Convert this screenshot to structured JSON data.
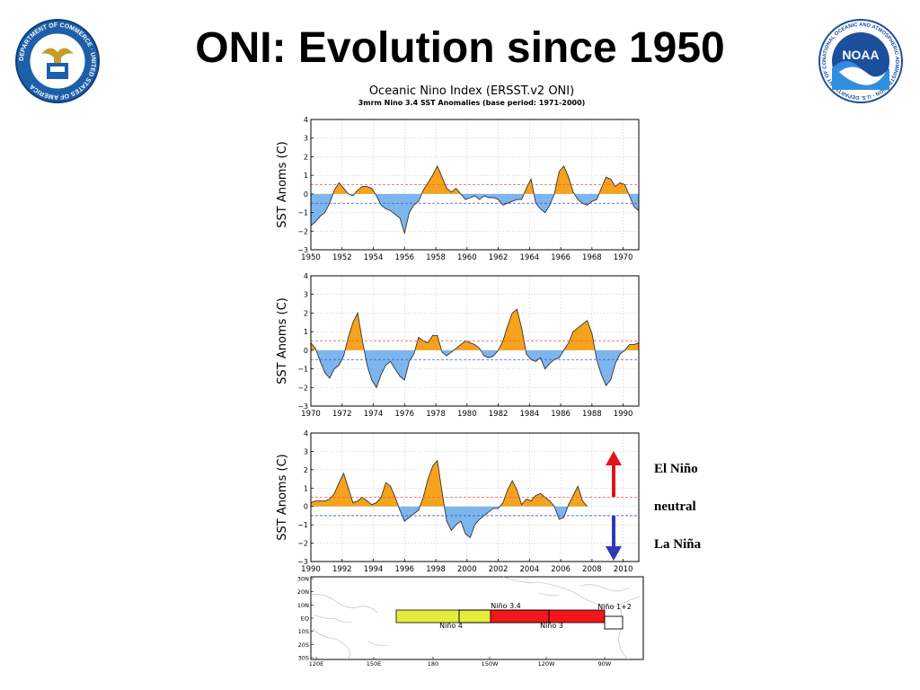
{
  "page": {
    "title": "ONI: Evolution since 1950",
    "logos": [
      {
        "name": "commerce-seal",
        "text": "DEPARTMENT OF COMMERCE · UNITED STATES OF AMERICA"
      },
      {
        "name": "noaa-logo",
        "text": "NOAA",
        "ring_text": "NATIONAL OCEANIC AND ATMOSPHERIC ADMINISTRATION · U.S. DEPARTMENT OF COMMERCE"
      }
    ]
  },
  "legend": {
    "el_nino": "El Niño",
    "neutral": "neutral",
    "la_nina": "La Niña"
  },
  "colors": {
    "warm": "#f5a31c",
    "cold": "#7db6ef",
    "pos_line": "#f05a5a",
    "neg_line": "#3a55c8",
    "up_arrow": "#e0151b",
    "down_arrow": "#2b3bb5",
    "nino34_west": "#e4ec3c",
    "nino3": "#f2171b"
  },
  "chart_data": [
    {
      "type": "area",
      "title": "Oceanic Nino Index (ERSST.v2 ONI)",
      "subtitle": "3mrm Nino 3.4 SST Anomalies (base period: 1971-2000)",
      "ylabel": "SST Anoms (C)",
      "ylim": [
        -3,
        4
      ],
      "yticks": [
        "4",
        "3",
        "2",
        "1",
        "0",
        "−1",
        "−2",
        "−3"
      ],
      "xlim": [
        1950,
        1971
      ],
      "xticks": [
        "1950",
        "1952",
        "1954",
        "1956",
        "1958",
        "1960",
        "1962",
        "1964",
        "1966",
        "1968",
        "1970"
      ],
      "thresholds": [
        0.5,
        -0.5
      ],
      "grid": true,
      "x": [
        1950.0,
        1950.3,
        1950.6,
        1950.9,
        1951.2,
        1951.5,
        1951.8,
        1952.1,
        1952.4,
        1952.7,
        1953.0,
        1953.3,
        1953.6,
        1953.9,
        1954.2,
        1954.5,
        1954.8,
        1955.1,
        1955.4,
        1955.7,
        1956.0,
        1956.3,
        1956.6,
        1956.9,
        1957.2,
        1957.5,
        1957.8,
        1958.1,
        1958.4,
        1958.7,
        1959.0,
        1959.3,
        1959.6,
        1959.9,
        1960.2,
        1960.5,
        1960.8,
        1961.1,
        1961.4,
        1961.7,
        1962.0,
        1962.3,
        1962.6,
        1962.9,
        1963.2,
        1963.5,
        1963.8,
        1964.1,
        1964.4,
        1964.7,
        1965.0,
        1965.3,
        1965.6,
        1965.9,
        1966.2,
        1966.5,
        1966.8,
        1967.1,
        1967.4,
        1967.7,
        1968.0,
        1968.3,
        1968.6,
        1968.9,
        1969.2,
        1969.5,
        1969.8,
        1970.1,
        1970.4,
        1970.7,
        1971.0
      ],
      "y": [
        -1.7,
        -1.5,
        -1.2,
        -1.0,
        -0.5,
        0.2,
        0.6,
        0.3,
        0.0,
        -0.1,
        0.2,
        0.4,
        0.4,
        0.3,
        -0.1,
        -0.6,
        -0.8,
        -0.9,
        -1.1,
        -1.3,
        -2.1,
        -1.0,
        -0.6,
        -0.4,
        0.2,
        0.6,
        1.0,
        1.5,
        0.9,
        0.3,
        0.1,
        0.3,
        0.0,
        -0.3,
        -0.2,
        -0.1,
        -0.3,
        -0.1,
        -0.2,
        -0.2,
        -0.3,
        -0.6,
        -0.5,
        -0.4,
        -0.3,
        -0.3,
        0.3,
        0.8,
        -0.5,
        -0.8,
        -1.0,
        -0.6,
        0.0,
        1.2,
        1.5,
        0.9,
        0.1,
        -0.3,
        -0.5,
        -0.6,
        -0.4,
        -0.3,
        0.3,
        0.9,
        0.8,
        0.4,
        0.6,
        0.5,
        -0.1,
        -0.7,
        -0.9
      ]
    },
    {
      "type": "area",
      "ylabel": "SST Anoms (C)",
      "ylim": [
        -3,
        4
      ],
      "yticks": [
        "4",
        "3",
        "2",
        "1",
        "0",
        "−1",
        "−2",
        "−3"
      ],
      "xlim": [
        1970,
        1991
      ],
      "xticks": [
        "1970",
        "1972",
        "1974",
        "1976",
        "1978",
        "1980",
        "1982",
        "1984",
        "1986",
        "1988",
        "1990"
      ],
      "thresholds": [
        0.5,
        -0.5
      ],
      "grid": true,
      "x": [
        1970.0,
        1970.3,
        1970.6,
        1970.9,
        1971.2,
        1971.5,
        1971.8,
        1972.1,
        1972.4,
        1972.7,
        1973.0,
        1973.3,
        1973.6,
        1973.9,
        1974.2,
        1974.5,
        1974.8,
        1975.1,
        1975.4,
        1975.7,
        1976.0,
        1976.3,
        1976.6,
        1976.9,
        1977.2,
        1977.5,
        1977.8,
        1978.1,
        1978.4,
        1978.7,
        1979.0,
        1979.3,
        1979.6,
        1979.9,
        1980.2,
        1980.5,
        1980.8,
        1981.1,
        1981.4,
        1981.7,
        1982.0,
        1982.3,
        1982.6,
        1982.9,
        1983.2,
        1983.5,
        1983.8,
        1984.1,
        1984.4,
        1984.7,
        1985.0,
        1985.3,
        1985.6,
        1985.9,
        1986.2,
        1986.5,
        1986.8,
        1987.1,
        1987.4,
        1987.7,
        1988.0,
        1988.3,
        1988.6,
        1988.9,
        1989.2,
        1989.5,
        1989.8,
        1990.1,
        1990.4,
        1990.7,
        1991.0
      ],
      "y": [
        0.4,
        0.1,
        -0.6,
        -1.2,
        -1.5,
        -1.0,
        -0.8,
        -0.3,
        0.7,
        1.5,
        2.0,
        0.5,
        -0.8,
        -1.6,
        -2.0,
        -1.3,
        -0.8,
        -0.6,
        -1.0,
        -1.4,
        -1.6,
        -0.6,
        -0.2,
        0.7,
        0.5,
        0.4,
        0.8,
        0.8,
        -0.1,
        -0.3,
        -0.1,
        0.1,
        0.3,
        0.5,
        0.4,
        0.3,
        0.1,
        -0.3,
        -0.4,
        -0.3,
        0.0,
        0.5,
        1.3,
        2.0,
        2.2,
        1.2,
        -0.2,
        -0.5,
        -0.6,
        -0.4,
        -1.0,
        -0.7,
        -0.5,
        -0.4,
        0.0,
        0.4,
        1.0,
        1.2,
        1.4,
        1.6,
        0.9,
        -0.5,
        -1.3,
        -1.9,
        -1.6,
        -0.7,
        -0.2,
        0.0,
        0.3,
        0.3,
        0.4
      ]
    },
    {
      "type": "area",
      "ylabel": "SST Anoms (C)",
      "ylim": [
        -3,
        4
      ],
      "yticks": [
        "4",
        "3",
        "2",
        "1",
        "0",
        "−1",
        "−2",
        "−3"
      ],
      "xlim": [
        1990,
        2011
      ],
      "xticks": [
        "1990",
        "1992",
        "1994",
        "1996",
        "1998",
        "2000",
        "2002",
        "2004",
        "2006",
        "2008",
        "2010"
      ],
      "thresholds": [
        0.5,
        -0.5
      ],
      "grid": true,
      "x": [
        1990.0,
        1990.3,
        1990.6,
        1990.9,
        1991.2,
        1991.5,
        1991.8,
        1992.1,
        1992.4,
        1992.7,
        1993.0,
        1993.3,
        1993.6,
        1993.9,
        1994.2,
        1994.5,
        1994.8,
        1995.1,
        1995.4,
        1995.7,
        1996.0,
        1996.3,
        1996.6,
        1996.9,
        1997.2,
        1997.5,
        1997.8,
        1998.1,
        1998.4,
        1998.7,
        1999.0,
        1999.3,
        1999.6,
        1999.9,
        2000.2,
        2000.5,
        2000.8,
        2001.1,
        2001.4,
        2001.7,
        2002.0,
        2002.3,
        2002.6,
        2002.9,
        2003.2,
        2003.5,
        2003.8,
        2004.1,
        2004.4,
        2004.7,
        2005.0,
        2005.3,
        2005.6,
        2005.9,
        2006.2,
        2006.5,
        2006.8,
        2007.1,
        2007.4,
        2007.7
      ],
      "y": [
        0.2,
        0.3,
        0.3,
        0.3,
        0.4,
        0.7,
        1.3,
        1.8,
        1.0,
        0.2,
        0.3,
        0.5,
        0.3,
        0.1,
        0.2,
        0.5,
        1.3,
        1.1,
        0.5,
        -0.2,
        -0.8,
        -0.6,
        -0.4,
        -0.2,
        0.5,
        1.5,
        2.2,
        2.5,
        0.8,
        -0.8,
        -1.3,
        -1.0,
        -0.8,
        -1.5,
        -1.7,
        -1.0,
        -0.7,
        -0.5,
        -0.3,
        -0.1,
        -0.1,
        0.2,
        0.9,
        1.4,
        0.9,
        0.1,
        0.4,
        0.3,
        0.6,
        0.7,
        0.5,
        0.3,
        0.0,
        -0.7,
        -0.6,
        0.1,
        0.6,
        1.1,
        0.3,
        0.0
      ]
    },
    {
      "type": "map",
      "y_ticks": [
        "30N",
        "20N",
        "10N",
        "EQ",
        "10S",
        "20S",
        "30S"
      ],
      "x_ticks": [
        "120E",
        "150E",
        "180",
        "150W",
        "120W",
        "90W"
      ],
      "regions": [
        {
          "name": "Niño 3.4"
        },
        {
          "name": "Niño 4"
        },
        {
          "name": "Niño 3"
        },
        {
          "name": "Niño 1+2"
        }
      ]
    }
  ]
}
